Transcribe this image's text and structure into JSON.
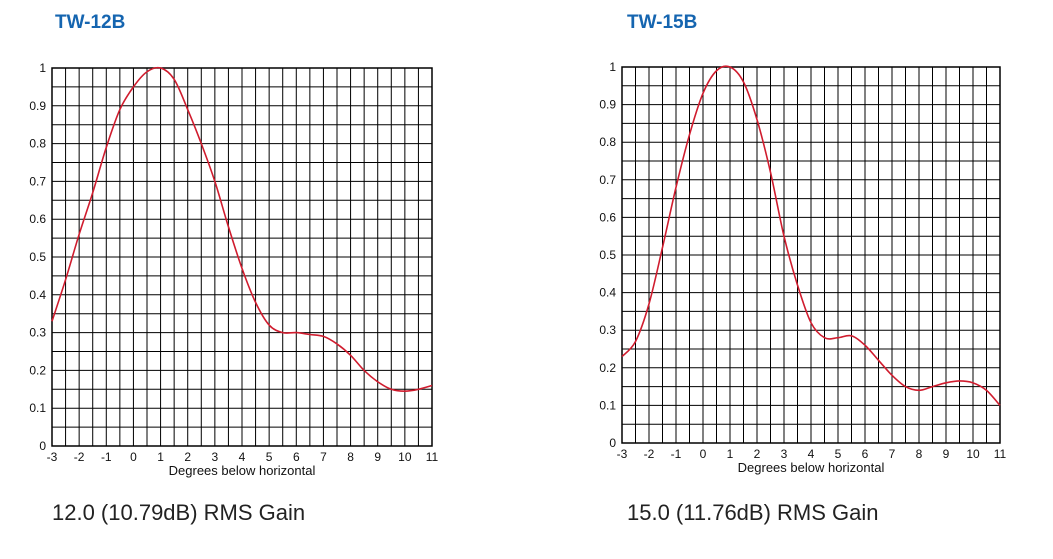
{
  "colors": {
    "title": "#1565b0",
    "curve": "#d01c2e",
    "grid": "#000000"
  },
  "charts": [
    {
      "title": "TW-12B",
      "caption": "12.0 (10.79dB) RMS Gain"
    },
    {
      "title": "TW-15B",
      "caption": "15.0 (11.76dB) RMS Gain"
    }
  ],
  "chart_data": [
    {
      "type": "line",
      "title": "TW-12B",
      "xlabel": "Degrees below horizontal",
      "ylabel": "",
      "xlim": [
        -3,
        11
      ],
      "ylim": [
        0,
        1
      ],
      "grid": true,
      "x_ticks": [
        "-3",
        "-2",
        "-1",
        "0",
        "1",
        "2",
        "3",
        "4",
        "5",
        "6",
        "7",
        "8",
        "9",
        "10",
        "11"
      ],
      "y_ticks": [
        "0",
        "0.1",
        "0.2",
        "0.3",
        "0.4",
        "0.5",
        "0.6",
        "0.7",
        "0.8",
        "0.9",
        "1"
      ],
      "series": [
        {
          "x": [
            -3,
            -2.5,
            -2,
            -1.5,
            -1,
            -0.5,
            0,
            0.5,
            1,
            1.5,
            2,
            2.5,
            3,
            3.5,
            4,
            4.5,
            5,
            5.5,
            6,
            6.5,
            7,
            7.5,
            8,
            8.5,
            9,
            9.5,
            10,
            10.5,
            11
          ],
          "y": [
            0.33,
            0.44,
            0.56,
            0.67,
            0.79,
            0.89,
            0.95,
            0.99,
            1.0,
            0.97,
            0.89,
            0.8,
            0.7,
            0.58,
            0.47,
            0.38,
            0.32,
            0.3,
            0.3,
            0.295,
            0.29,
            0.27,
            0.24,
            0.2,
            0.17,
            0.15,
            0.145,
            0.15,
            0.16
          ]
        }
      ]
    },
    {
      "type": "line",
      "title": "TW-15B",
      "xlabel": "Degrees below horizontal",
      "ylabel": "",
      "xlim": [
        -3,
        11
      ],
      "ylim": [
        0,
        1
      ],
      "grid": true,
      "x_ticks": [
        "-3",
        "-2",
        "-1",
        "0",
        "1",
        "2",
        "3",
        "4",
        "5",
        "6",
        "7",
        "8",
        "9",
        "10",
        "11"
      ],
      "y_ticks": [
        "0",
        "0.1",
        "0.2",
        "0.3",
        "0.4",
        "0.5",
        "0.6",
        "0.7",
        "0.8",
        "0.9",
        "1"
      ],
      "series": [
        {
          "x": [
            -3,
            -2.5,
            -2,
            -1.5,
            -1,
            -0.5,
            0,
            0.5,
            1,
            1.5,
            2,
            2.5,
            3,
            3.5,
            4,
            4.5,
            5,
            5.5,
            6,
            6.5,
            7,
            7.5,
            8,
            8.5,
            9,
            9.5,
            10,
            10.5,
            11
          ],
          "y": [
            0.23,
            0.27,
            0.37,
            0.52,
            0.68,
            0.82,
            0.93,
            0.99,
            1.0,
            0.96,
            0.86,
            0.72,
            0.55,
            0.42,
            0.32,
            0.28,
            0.28,
            0.285,
            0.26,
            0.22,
            0.18,
            0.15,
            0.14,
            0.15,
            0.16,
            0.165,
            0.16,
            0.14,
            0.1
          ]
        }
      ]
    }
  ]
}
